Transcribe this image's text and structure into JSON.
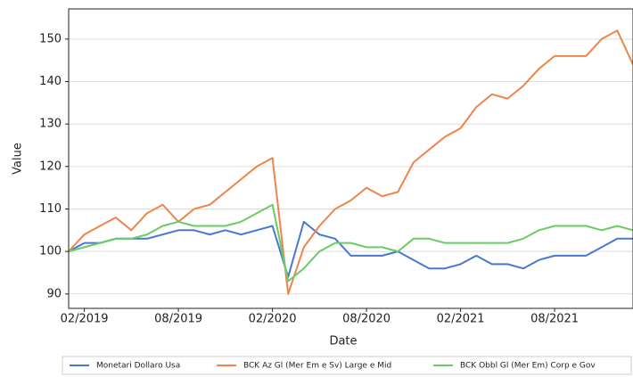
{
  "chart_data": {
    "type": "line",
    "xlabel": "Date",
    "ylabel": "Value",
    "x": [
      "2019-01",
      "2019-02",
      "2019-03",
      "2019-04",
      "2019-05",
      "2019-06",
      "2019-07",
      "2019-08",
      "2019-09",
      "2019-10",
      "2019-11",
      "2019-12",
      "2020-01",
      "2020-02",
      "2020-03",
      "2020-04",
      "2020-05",
      "2020-06",
      "2020-07",
      "2020-08",
      "2020-09",
      "2020-10",
      "2020-11",
      "2020-12",
      "2021-01",
      "2021-02",
      "2021-03",
      "2021-04",
      "2021-05",
      "2021-06",
      "2021-07",
      "2021-08",
      "2021-09",
      "2021-10",
      "2021-11",
      "2021-12",
      "2022-01"
    ],
    "series": [
      {
        "name": "Monetari Dollaro Usa",
        "color": "#4878d0",
        "values": [
          100,
          102,
          102,
          103,
          103,
          103,
          104,
          105,
          105,
          104,
          105,
          104,
          105,
          106,
          94,
          107,
          104,
          103,
          99,
          99,
          99,
          100,
          98,
          96,
          96,
          97,
          99,
          97,
          97,
          96,
          98,
          99,
          99,
          99,
          101,
          103,
          103
        ]
      },
      {
        "name": "BCK Az Gl (Mer Em e Sv) Large e Mid",
        "color": "#ee854a",
        "values": [
          100,
          104,
          106,
          108,
          105,
          109,
          111,
          107,
          110,
          111,
          114,
          117,
          120,
          122,
          90,
          101,
          106,
          110,
          112,
          115,
          113,
          114,
          121,
          124,
          127,
          129,
          134,
          137,
          136,
          139,
          143,
          146,
          146,
          146,
          150,
          152,
          144
        ]
      },
      {
        "name": "BCK Obbl Gl (Mer Em) Corp e Gov",
        "color": "#6acc64",
        "values": [
          100,
          101,
          102,
          103,
          103,
          104,
          106,
          107,
          106,
          106,
          106,
          107,
          109,
          111,
          93,
          96,
          100,
          102,
          102,
          101,
          101,
          100,
          103,
          103,
          102,
          102,
          102,
          102,
          102,
          103,
          105,
          106,
          106,
          106,
          105,
          106,
          105
        ]
      }
    ],
    "xlim": [
      "2019-01",
      "2022-01"
    ],
    "xticks": [
      {
        "value": "2019-02",
        "label": "02/2019"
      },
      {
        "value": "2019-08",
        "label": "08/2019"
      },
      {
        "value": "2020-02",
        "label": "02/2020"
      },
      {
        "value": "2020-08",
        "label": "08/2020"
      },
      {
        "value": "2021-02",
        "label": "02/2021"
      },
      {
        "value": "2021-08",
        "label": "08/2021"
      }
    ],
    "ylim": [
      86.6,
      157.1
    ],
    "yticks": [
      90,
      100,
      110,
      120,
      130,
      140,
      150
    ],
    "grid": true,
    "legend": "bottom"
  }
}
